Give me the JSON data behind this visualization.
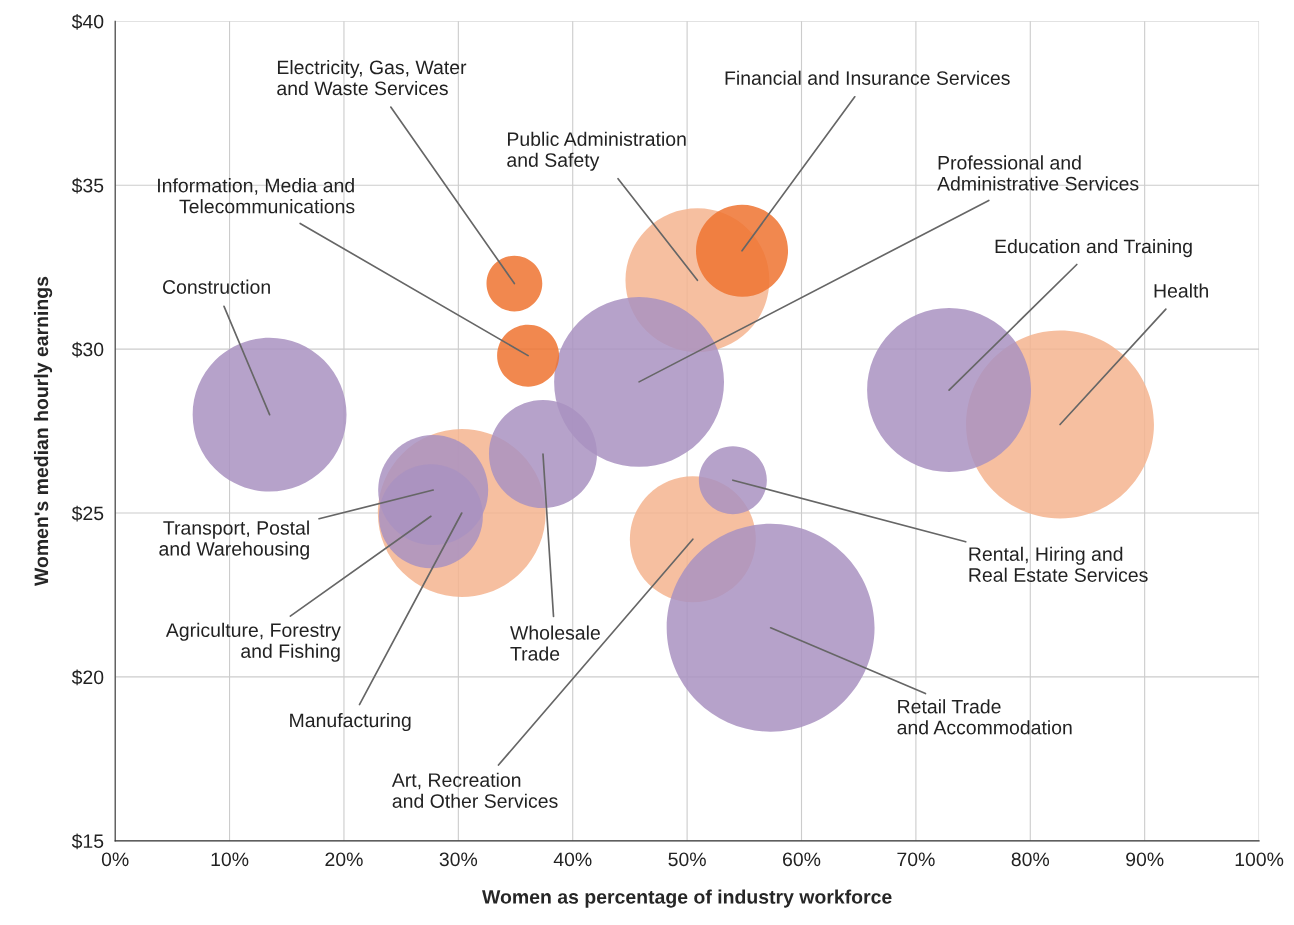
{
  "chart_data": {
    "type": "bubble",
    "xlabel": "Women as percentage of industry workforce",
    "ylabel": "Women's median hourly earnings",
    "xlim": [
      0,
      100
    ],
    "xticks": [
      {
        "value": 0,
        "label": "0%"
      },
      {
        "value": 10,
        "label": "10%"
      },
      {
        "value": 20,
        "label": "20%"
      },
      {
        "value": 30,
        "label": "30%"
      },
      {
        "value": 40,
        "label": "40%"
      },
      {
        "value": 50,
        "label": "50%"
      },
      {
        "value": 60,
        "label": "60%"
      },
      {
        "value": 70,
        "label": "70%"
      },
      {
        "value": 80,
        "label": "80%"
      },
      {
        "value": 90,
        "label": "90%"
      },
      {
        "value": 100,
        "label": "100%"
      }
    ],
    "ylim": [
      15,
      40
    ],
    "yticks": [
      {
        "value": 15,
        "label": "$15"
      },
      {
        "value": 20,
        "label": "$20"
      },
      {
        "value": 25,
        "label": "$25"
      },
      {
        "value": 30,
        "label": "$30"
      },
      {
        "value": 35,
        "label": "$35"
      },
      {
        "value": 40,
        "label": "$40"
      }
    ],
    "grid": true,
    "series": [
      {
        "color": "#f5b48f",
        "x": [
          30.3,
          50.9,
          50.5,
          82.6
        ],
        "values": [
          25.0,
          32.1,
          24.2,
          27.7
        ],
        "sizes": [
          0.652,
          0.479,
          0.367,
          0.817
        ]
      },
      {
        "color": "#a992c1",
        "x": [
          13.5,
          27.8,
          27.6,
          37.4,
          45.8,
          54.0,
          57.3,
          72.9
        ],
        "values": [
          28.0,
          25.7,
          24.9,
          26.8,
          29.0,
          26.0,
          21.5,
          28.75
        ],
        "sizes": [
          0.548,
          0.28,
          0.25,
          0.27,
          0.668,
          0.107,
          1,
          0.622
        ]
      },
      {
        "color": "#ee7330",
        "x": [
          34.9,
          36.1,
          54.8
        ],
        "values": [
          32.0,
          29.8,
          33.0
        ],
        "sizes": [
          0.072,
          0.089,
          0.196
        ]
      }
    ],
    "annotations": [
      {
        "text": "Construction",
        "x": 13.5,
        "y": 28.0
      },
      {
        "text": "Electricity, Gas, Water\nand Waste Services",
        "x": 34.9,
        "y": 32.0
      },
      {
        "text": "Information, Media and\nTelecommunications",
        "x": 36.1,
        "y": 29.8
      },
      {
        "text": "Public Administration\nand Safety",
        "x": 50.9,
        "y": 32.1
      },
      {
        "text": "Financial and Insurance Services",
        "x": 54.8,
        "y": 33.0
      },
      {
        "text": "Professional and\nAdministrative Services",
        "x": 45.8,
        "y": 29.0
      },
      {
        "text": "Education and Training",
        "x": 72.9,
        "y": 28.75
      },
      {
        "text": "Health",
        "x": 82.6,
        "y": 27.7
      },
      {
        "text": "Transport, Postal\nand Warehousing",
        "x": 27.8,
        "y": 25.7
      },
      {
        "text": "Agriculture, Forestry\nand Fishing",
        "x": 27.6,
        "y": 24.9
      },
      {
        "text": "Manufacturing",
        "x": 30.3,
        "y": 25.0
      },
      {
        "text": "Wholesale\nTrade",
        "x": 37.4,
        "y": 26.8
      },
      {
        "text": "Rental, Hiring and\nReal Estate Services",
        "x": 54.0,
        "y": 26.0
      },
      {
        "text": "Art, Recreation\nand Other Services",
        "x": 50.5,
        "y": 24.2
      },
      {
        "text": "Retail Trade\nand Accommodation",
        "x": 57.3,
        "y": 21.5
      }
    ]
  }
}
